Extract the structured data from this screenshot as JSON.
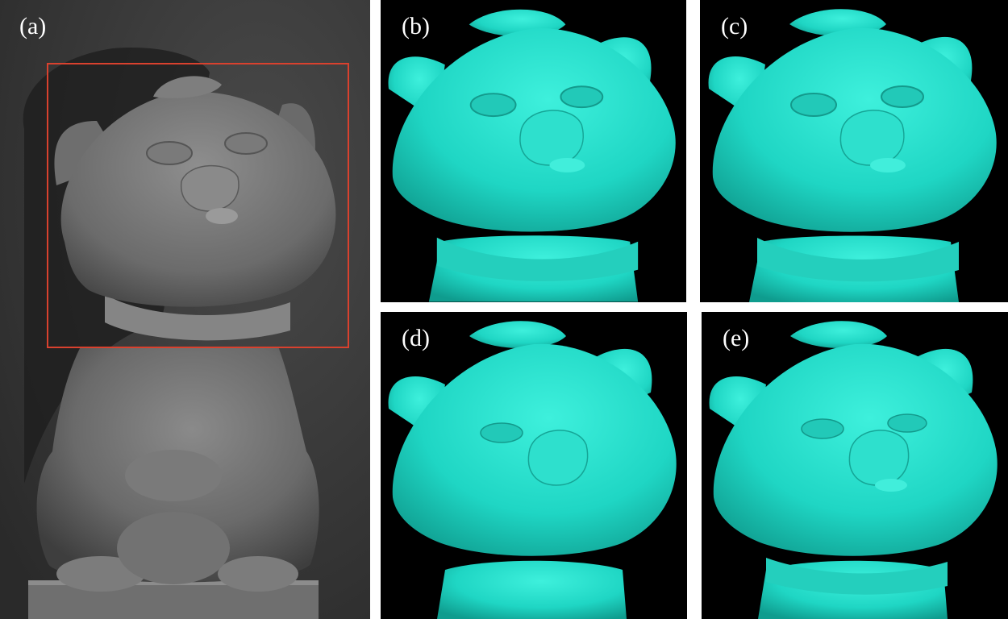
{
  "figure": {
    "panels": [
      {
        "id": "a",
        "label": "(a)",
        "content": "grayscale photograph of cat statue",
        "highlight_color": "#d9412e"
      },
      {
        "id": "b",
        "label": "(b)",
        "content": "3D reconstruction",
        "surface_color": "#1fd6c4"
      },
      {
        "id": "c",
        "label": "(c)",
        "content": "3D reconstruction",
        "surface_color": "#1fd6c4"
      },
      {
        "id": "d",
        "label": "(d)",
        "content": "3D reconstruction",
        "surface_color": "#1fd6c4"
      },
      {
        "id": "e",
        "label": "(e)",
        "content": "3D reconstruction",
        "surface_color": "#1fd6c4"
      }
    ]
  }
}
